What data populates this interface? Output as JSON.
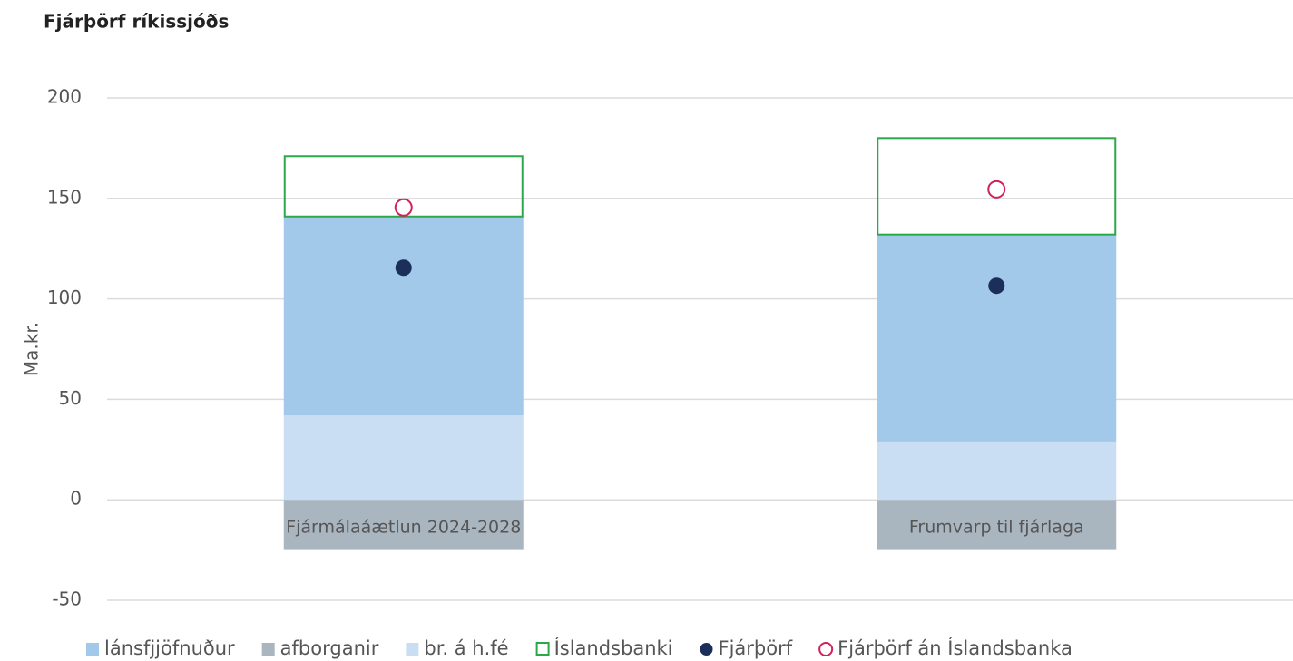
{
  "chart_data": {
    "type": "stacked-bar",
    "title": "Fjárþörf ríkissjóðs",
    "y_label": "Ma.kr.",
    "categories": [
      "Fjármálaáætlun 2024-2028",
      "Frumvarp til fjárlaga"
    ],
    "series": [
      {
        "name": "lánsfjjöfnuður",
        "kind": "bar",
        "color": "#a2c9ea",
        "values": [
          99,
          103
        ]
      },
      {
        "name": "afborganir",
        "kind": "bar",
        "color": "#a9b5bf",
        "values": [
          -25,
          -25
        ]
      },
      {
        "name": "br. á h.fé",
        "kind": "bar",
        "color": "#c9ddf3",
        "values": [
          42,
          29
        ]
      },
      {
        "name": "Íslandsbanki",
        "kind": "outline",
        "color": "#2aa84a",
        "values": [
          30,
          48
        ]
      },
      {
        "name": "Fjárþörf",
        "kind": "dot",
        "color": "#1c2f5a",
        "values": [
          115.5,
          106.5
        ]
      },
      {
        "name": "Fjárþörf án Íslandsbanka",
        "kind": "circle",
        "color": "#d1205a",
        "values": [
          145.5,
          154.5
        ]
      }
    ],
    "stack_order": [
      2,
      0,
      3
    ],
    "ylim": [
      -50,
      200
    ],
    "yticks": [
      -50,
      0,
      50,
      100,
      150,
      200
    ],
    "grid": true,
    "legend": "bottom"
  }
}
